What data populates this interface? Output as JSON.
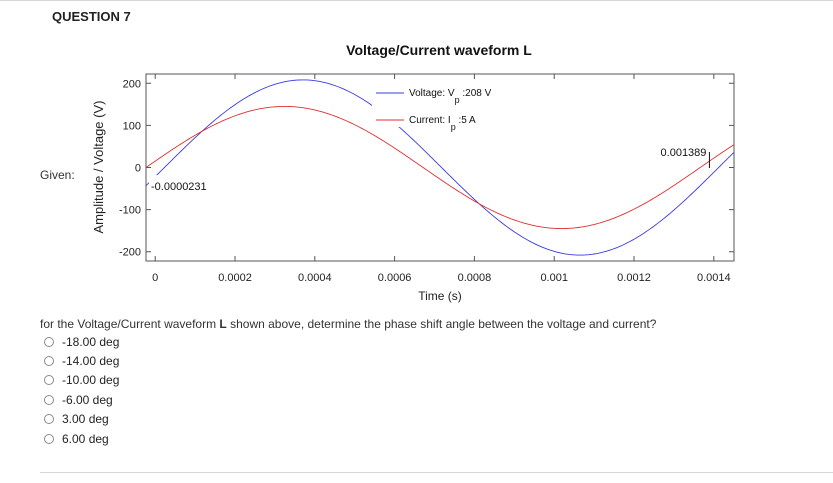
{
  "question": {
    "title": "QUESTION 7",
    "given_label": "Given:",
    "text_before": "for the Voltage/Current waveform ",
    "text_bold": "L",
    "text_after": " shown above, determine the phase shift angle between the voltage and current?",
    "options": [
      "-18.00 deg",
      "-14.00 deg",
      "-10.00 deg",
      "-6.00 deg",
      "3.00 deg",
      "6.00 deg"
    ]
  },
  "chart_data": {
    "type": "line",
    "title": "Voltage/Current waveform L",
    "xlabel": "Time (s)",
    "ylabel": "Amplitude / Voltage (V)",
    "xlim": [
      -2.31e-05,
      0.0014506
    ],
    "ylim": [
      -222,
      222
    ],
    "xticks": [
      0,
      0.0002,
      0.0004,
      0.0006,
      0.0008,
      0.001,
      0.0012,
      0.0014
    ],
    "xtick_labels": [
      "0",
      "0.0002",
      "0.0004",
      "0.0006",
      "0.0008",
      "0.001",
      "0.0012",
      "0.0014"
    ],
    "yticks": [
      200,
      100,
      0,
      -100,
      -200
    ],
    "ytick_labels": [
      "200",
      "100",
      "0",
      "-100",
      "-200"
    ],
    "period": 0.001389,
    "series": [
      {
        "name": "Voltage: V :208 V",
        "name_main": "Voltage: V",
        "name_sub": "p",
        "name_value": " :208 V",
        "color": "#3a3ae6",
        "amplitude": 208,
        "zero_crossing": 2.31e-05
      },
      {
        "name": "Current: I :5 A",
        "name_main": "Current: I",
        "name_sub": "p",
        "name_value": " :5 A",
        "color": "#e03030",
        "amplitude": 145,
        "zero_crossing": -2.31e-05
      }
    ],
    "annotations": [
      {
        "text": "-0.0000231",
        "x": -2.31e-05,
        "y": 0
      },
      {
        "text": "0.001389",
        "x": 0.001389,
        "y": 0
      }
    ],
    "legend": "top-center"
  }
}
